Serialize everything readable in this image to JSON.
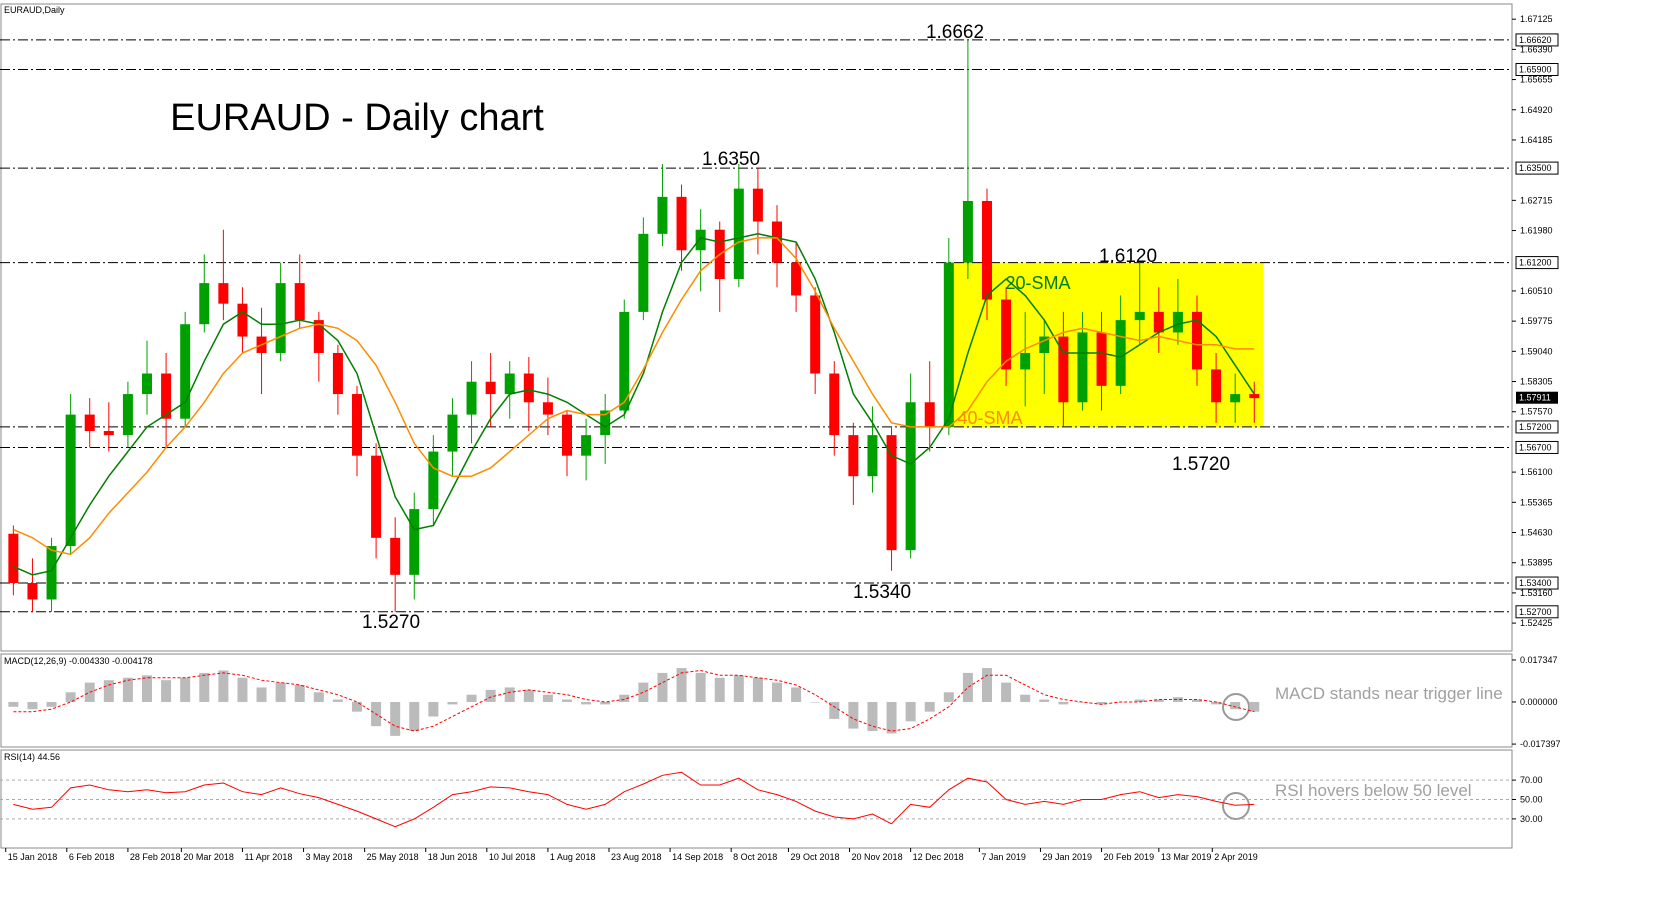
{
  "chart_data": [
    {
      "type": "candlestick",
      "symbol": "EURAUD,Daily",
      "title": "EURAUD - Daily chart",
      "x": [
        "2018-01-15",
        "2018-01-22",
        "2018-01-29",
        "2018-02-05",
        "2018-02-12",
        "2018-02-19",
        "2018-02-26",
        "2018-03-05",
        "2018-03-12",
        "2018-03-19",
        "2018-03-26",
        "2018-04-02",
        "2018-04-09",
        "2018-04-16",
        "2018-04-23",
        "2018-04-30",
        "2018-05-07",
        "2018-05-14",
        "2018-05-21",
        "2018-05-28",
        "2018-06-04",
        "2018-06-11",
        "2018-06-18",
        "2018-06-25",
        "2018-07-02",
        "2018-07-09",
        "2018-07-16",
        "2018-07-23",
        "2018-07-30",
        "2018-08-06",
        "2018-08-13",
        "2018-08-20",
        "2018-08-27",
        "2018-09-03",
        "2018-09-10",
        "2018-09-17",
        "2018-09-24",
        "2018-10-01",
        "2018-10-08",
        "2018-10-15",
        "2018-10-22",
        "2018-10-29",
        "2018-11-05",
        "2018-11-12",
        "2018-11-19",
        "2018-11-26",
        "2018-12-03",
        "2018-12-10",
        "2018-12-17",
        "2018-12-24",
        "2018-12-31",
        "2019-01-07",
        "2019-01-14",
        "2019-01-21",
        "2019-01-28",
        "2019-02-04",
        "2019-02-11",
        "2019-02-18",
        "2019-02-25",
        "2019-03-04",
        "2019-03-11",
        "2019-03-18",
        "2019-03-25",
        "2019-04-01",
        "2019-04-08",
        "2019-04-15"
      ],
      "open": [
        1.546,
        1.534,
        1.53,
        1.543,
        1.575,
        1.571,
        1.57,
        1.58,
        1.585,
        1.574,
        1.597,
        1.607,
        1.602,
        1.594,
        1.59,
        1.607,
        1.598,
        1.59,
        1.58,
        1.565,
        1.545,
        1.536,
        1.552,
        1.566,
        1.575,
        1.583,
        1.58,
        1.585,
        1.578,
        1.575,
        1.565,
        1.57,
        1.576,
        1.6,
        1.619,
        1.628,
        1.615,
        1.62,
        1.608,
        1.63,
        1.622,
        1.612,
        1.604,
        1.585,
        1.57,
        1.56,
        1.57,
        1.542,
        1.578,
        1.572,
        1.612,
        1.627,
        1.603,
        1.586,
        1.59,
        1.594,
        1.578,
        1.595,
        1.582,
        1.598,
        1.6,
        1.595,
        1.6,
        1.586,
        1.578,
        1.58
      ],
      "high": [
        1.548,
        1.54,
        1.545,
        1.58,
        1.579,
        1.578,
        1.583,
        1.593,
        1.59,
        1.6,
        1.614,
        1.62,
        1.606,
        1.601,
        1.612,
        1.614,
        1.6,
        1.592,
        1.582,
        1.568,
        1.55,
        1.556,
        1.57,
        1.579,
        1.588,
        1.59,
        1.588,
        1.589,
        1.584,
        1.576,
        1.574,
        1.58,
        1.603,
        1.623,
        1.636,
        1.631,
        1.625,
        1.622,
        1.636,
        1.635,
        1.626,
        1.617,
        1.606,
        1.588,
        1.573,
        1.577,
        1.572,
        1.585,
        1.588,
        1.618,
        1.6662,
        1.63,
        1.606,
        1.6,
        1.598,
        1.6,
        1.6,
        1.6,
        1.604,
        1.612,
        1.606,
        1.608,
        1.604,
        1.59,
        1.585,
        1.583
      ],
      "low": [
        1.531,
        1.527,
        1.527,
        1.541,
        1.567,
        1.566,
        1.567,
        1.575,
        1.567,
        1.572,
        1.595,
        1.598,
        1.59,
        1.58,
        1.588,
        1.596,
        1.583,
        1.575,
        1.56,
        1.54,
        1.527,
        1.53,
        1.548,
        1.56,
        1.568,
        1.572,
        1.574,
        1.571,
        1.57,
        1.56,
        1.559,
        1.563,
        1.574,
        1.598,
        1.616,
        1.61,
        1.605,
        1.6,
        1.606,
        1.614,
        1.606,
        1.6,
        1.58,
        1.565,
        1.553,
        1.556,
        1.537,
        1.54,
        1.566,
        1.57,
        1.608,
        1.598,
        1.582,
        1.577,
        1.58,
        1.572,
        1.576,
        1.576,
        1.58,
        1.592,
        1.59,
        1.592,
        1.582,
        1.573,
        1.573,
        1.573
      ],
      "close": [
        1.534,
        1.53,
        1.543,
        1.575,
        1.571,
        1.57,
        1.58,
        1.585,
        1.574,
        1.597,
        1.607,
        1.602,
        1.594,
        1.59,
        1.607,
        1.598,
        1.59,
        1.58,
        1.565,
        1.545,
        1.536,
        1.552,
        1.566,
        1.575,
        1.583,
        1.58,
        1.585,
        1.578,
        1.575,
        1.565,
        1.57,
        1.576,
        1.6,
        1.619,
        1.628,
        1.615,
        1.62,
        1.608,
        1.63,
        1.622,
        1.612,
        1.604,
        1.585,
        1.57,
        1.56,
        1.57,
        1.542,
        1.578,
        1.572,
        1.612,
        1.627,
        1.603,
        1.586,
        1.59,
        1.594,
        1.578,
        1.595,
        1.582,
        1.598,
        1.6,
        1.595,
        1.6,
        1.586,
        1.578,
        1.58,
        1.579
      ],
      "up_color": "#00a000",
      "down_color": "#ff0000",
      "series": [
        {
          "name": "20-SMA",
          "color": "#007f00",
          "values": [
            1.538,
            1.536,
            1.537,
            1.545,
            1.553,
            1.56,
            1.566,
            1.572,
            1.575,
            1.578,
            1.588,
            1.597,
            1.6,
            1.597,
            1.597,
            1.598,
            1.597,
            1.593,
            1.585,
            1.57,
            1.555,
            1.547,
            1.548,
            1.557,
            1.566,
            1.574,
            1.58,
            1.581,
            1.58,
            1.578,
            1.575,
            1.572,
            1.575,
            1.585,
            1.6,
            1.612,
            1.618,
            1.617,
            1.618,
            1.619,
            1.618,
            1.617,
            1.608,
            1.595,
            1.58,
            1.573,
            1.565,
            1.563,
            1.567,
            1.574,
            1.59,
            1.604,
            1.608,
            1.604,
            1.598,
            1.59,
            1.59,
            1.59,
            1.589,
            1.592,
            1.595,
            1.597,
            1.598,
            1.594,
            1.587,
            1.58
          ]
        },
        {
          "name": "40-SMA",
          "color": "#ff8c00",
          "values": [
            1.547,
            1.545,
            1.542,
            1.541,
            1.545,
            1.551,
            1.556,
            1.561,
            1.567,
            1.572,
            1.578,
            1.585,
            1.59,
            1.592,
            1.594,
            1.596,
            1.597,
            1.596,
            1.593,
            1.587,
            1.578,
            1.568,
            1.562,
            1.56,
            1.56,
            1.562,
            1.566,
            1.57,
            1.574,
            1.576,
            1.575,
            1.575,
            1.578,
            1.586,
            1.595,
            1.603,
            1.61,
            1.614,
            1.617,
            1.618,
            1.618,
            1.613,
            1.605,
            1.596,
            1.588,
            1.58,
            1.573,
            1.572,
            1.572,
            1.572,
            1.576,
            1.583,
            1.588,
            1.591,
            1.593,
            1.595,
            1.596,
            1.595,
            1.594,
            1.593,
            1.594,
            1.593,
            1.592,
            1.592,
            1.591,
            1.591
          ]
        }
      ],
      "xlim": [
        "2018-01-12",
        "2019-07-22"
      ],
      "xticks": [
        {
          "value": "2018-01-15",
          "label": "15 Jan 2018"
        },
        {
          "value": "2018-02-06",
          "label": "6 Feb 2018"
        },
        {
          "value": "2018-02-28",
          "label": "28 Feb 2018"
        },
        {
          "value": "2018-03-20",
          "label": "20 Mar 2018"
        },
        {
          "value": "2018-04-11",
          "label": "11 Apr 2018"
        },
        {
          "value": "2018-05-03",
          "label": "3 May 2018"
        },
        {
          "value": "2018-05-25",
          "label": "25 May 2018"
        },
        {
          "value": "2018-06-18",
          "label": "18 Jun 2018"
        },
        {
          "value": "2018-07-10",
          "label": "10 Jul 2018"
        },
        {
          "value": "2018-08-01",
          "label": "1 Aug 2018"
        },
        {
          "value": "2018-08-23",
          "label": "23 Aug 2018"
        },
        {
          "value": "2018-09-14",
          "label": "14 Sep 2018"
        },
        {
          "value": "2018-10-08",
          "label": "8 Oct 2018"
        },
        {
          "value": "2018-10-29",
          "label": "29 Oct 2018"
        },
        {
          "value": "2018-11-20",
          "label": "20 Nov 2018"
        },
        {
          "value": "2018-12-12",
          "label": "12 Dec 2018"
        },
        {
          "value": "2019-01-07",
          "label": "7 Jan 2019"
        },
        {
          "value": "2019-01-29",
          "label": "29 Jan 2019"
        },
        {
          "value": "2019-02-20",
          "label": "20 Feb 2019"
        },
        {
          "value": "2019-03-13",
          "label": "13 Mar 2019"
        },
        {
          "value": "2019-04-02",
          "label": "2 Apr 2019"
        }
      ],
      "ylim": [
        1.5177,
        1.6747
      ],
      "yticks": [
        1.67125,
        {
          "value": 1.6639,
          "label": "1.66390"
        },
        1.65655,
        {
          "value": 1.6492,
          "label": "1.64920"
        },
        1.64185,
        1.62715,
        {
          "value": 1.6198,
          "label": "1.61980"
        },
        {
          "value": 1.6051,
          "label": "1.60510"
        },
        1.59775,
        {
          "value": 1.5904,
          "label": "1.59040"
        },
        1.58305,
        {
          "value": 1.5757,
          "label": "1.57570"
        },
        {
          "value": 1.561,
          "label": "1.56100"
        },
        1.55365,
        {
          "value": 1.5463,
          "label": "1.54630"
        },
        1.53895,
        {
          "value": 1.5316,
          "label": "1.53160"
        },
        1.52425
      ],
      "levels": [
        {
          "value": 1.6662,
          "label": "1.66620"
        },
        {
          "value": 1.659,
          "label": "1.65900"
        },
        {
          "value": 1.635,
          "label": "1.63500"
        },
        {
          "value": 1.612,
          "label": "1.61200"
        },
        {
          "value": 1.572,
          "label": "1.57200"
        },
        {
          "value": 1.567,
          "label": "1.56700"
        },
        {
          "value": 1.534,
          "label": "1.53400"
        },
        {
          "value": 1.527,
          "label": "1.52700"
        }
      ],
      "current_price": 1.57911,
      "annotations": [
        "1.6662",
        "1.6350",
        "1.6120",
        "1.5720",
        "1.5340",
        "1.5270"
      ],
      "highlight": {
        "from": "2018-12-27",
        "to": "2019-04-15",
        "low": 1.572,
        "high": 1.612,
        "color": "#ffff00"
      }
    },
    {
      "type": "macd",
      "label": "MACD(12,26,9) -0.004330 -0.004178",
      "series": [
        {
          "color": "#bbbbbb",
          "values": [
            -0.002,
            -0.003,
            -0.002,
            0.004,
            0.008,
            0.009,
            0.01,
            0.011,
            0.009,
            0.01,
            0.012,
            0.013,
            0.01,
            0.006,
            0.008,
            0.007,
            0.004,
            0.001,
            -0.004,
            -0.01,
            -0.014,
            -0.012,
            -0.006,
            -0.001,
            0.003,
            0.005,
            0.006,
            0.005,
            0.003,
            0.001,
            -0.001,
            -0.001,
            0.003,
            0.008,
            0.012,
            0.014,
            0.012,
            0.01,
            0.011,
            0.01,
            0.008,
            0.006,
            0,
            -0.007,
            -0.011,
            -0.012,
            -0.013,
            -0.008,
            -0.004,
            0.004,
            0.012,
            0.014,
            0.008,
            0.003,
            0.001,
            -0.001,
            0,
            -0.001,
            0,
            0.001,
            0.001,
            0.002,
            0.001,
            -0.001,
            -0.003,
            -0.004
          ]
        },
        {
          "color": "#ff0000",
          "values": [
            -0.004,
            -0.004,
            -0.003,
            0,
            0.004,
            0.007,
            0.009,
            0.01,
            0.01,
            0.01,
            0.011,
            0.012,
            0.011,
            0.009,
            0.008,
            0.007,
            0.005,
            0.003,
            0,
            -0.005,
            -0.01,
            -0.012,
            -0.01,
            -0.006,
            -0.002,
            0.002,
            0.004,
            0.005,
            0.004,
            0.003,
            0.001,
            0,
            0.001,
            0.004,
            0.008,
            0.012,
            0.013,
            0.011,
            0.011,
            0.01,
            0.009,
            0.007,
            0.003,
            -0.002,
            -0.007,
            -0.01,
            -0.012,
            -0.011,
            -0.007,
            -0.002,
            0.006,
            0.011,
            0.011,
            0.007,
            0.003,
            0.001,
            0,
            -0.001,
            0,
            0,
            0.001,
            0.001,
            0.001,
            0,
            -0.002,
            -0.004
          ]
        }
      ],
      "ylim": [
        -0.0186,
        0.0194
      ],
      "yticks": [
        0.017347,
        {
          "value": 0,
          "label": "0.000000"
        },
        -0.017397
      ],
      "annotation": "MACD stands near trigger line"
    },
    {
      "type": "line",
      "label": "RSI(14) 44.56",
      "series": [
        {
          "color": "#ff0000",
          "values": [
            45,
            40,
            42,
            62,
            65,
            60,
            58,
            60,
            57,
            58,
            65,
            67,
            58,
            55,
            62,
            56,
            52,
            45,
            38,
            30,
            22,
            30,
            42,
            55,
            58,
            63,
            62,
            58,
            55,
            45,
            40,
            45,
            58,
            66,
            75,
            78,
            65,
            65,
            72,
            60,
            55,
            48,
            38,
            32,
            30,
            35,
            25,
            45,
            42,
            60,
            72,
            68,
            50,
            45,
            48,
            45,
            50,
            50,
            55,
            58,
            52,
            55,
            53,
            48,
            44,
            45
          ]
        }
      ],
      "ylim": [
        0,
        100
      ],
      "yticks": [
        {
          "value": 70,
          "label": "70.00"
        },
        {
          "value": 50,
          "label": "50.00"
        },
        {
          "value": 30,
          "label": "30.00"
        }
      ],
      "grid": true,
      "annotation": "RSI hovers below 50 level"
    }
  ]
}
